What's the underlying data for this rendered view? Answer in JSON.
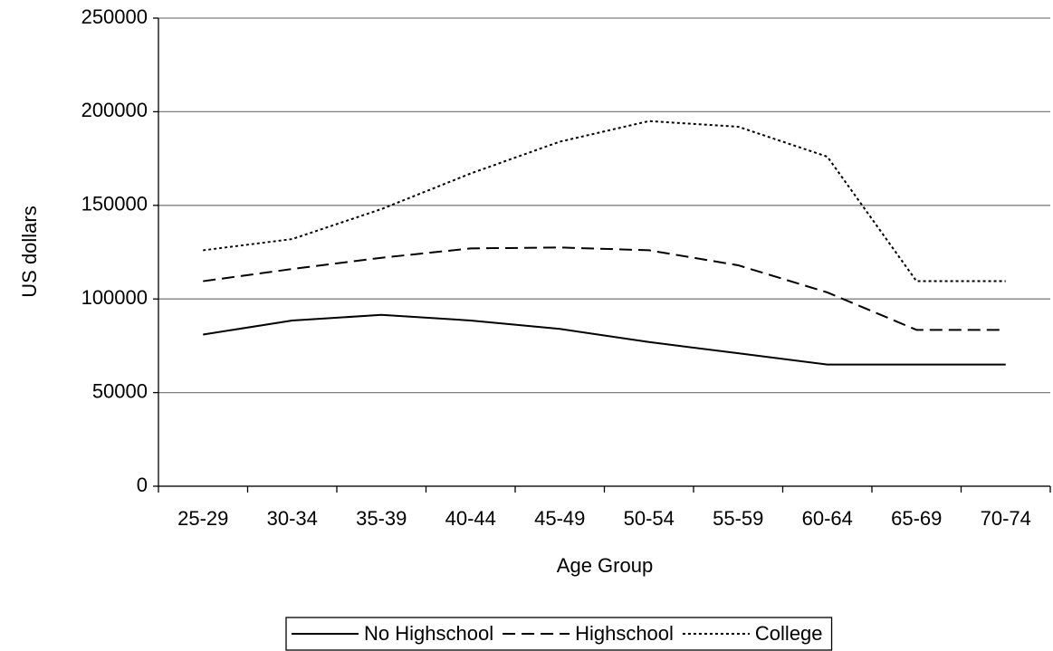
{
  "chart_data": {
    "type": "line",
    "x_label": "Age Group",
    "y_label": "US dollars",
    "categories": [
      "25-29",
      "30-34",
      "35-39",
      "40-44",
      "45-49",
      "50-54",
      "55-59",
      "60-64",
      "65-69",
      "70-74"
    ],
    "series": [
      {
        "name": "No Highschool",
        "color": "#000000",
        "dash": "solid",
        "values": [
          81000,
          88500,
          91500,
          88500,
          84000,
          77000,
          71000,
          65000,
          65000,
          65000
        ]
      },
      {
        "name": "Highschool",
        "color": "#000000",
        "dash": "dashed",
        "values": [
          109500,
          116000,
          122000,
          127000,
          127500,
          126000,
          118000,
          103500,
          83500,
          83500
        ]
      },
      {
        "name": "College",
        "color": "#000000",
        "dash": "dotted",
        "values": [
          126000,
          132000,
          148000,
          167000,
          184000,
          195000,
          192000,
          176000,
          109500,
          109500
        ]
      }
    ],
    "ylim": [
      0,
      250000
    ],
    "yticks": [
      0,
      50000,
      100000,
      150000,
      200000,
      250000
    ],
    "grid": true,
    "legend": "bottom"
  }
}
